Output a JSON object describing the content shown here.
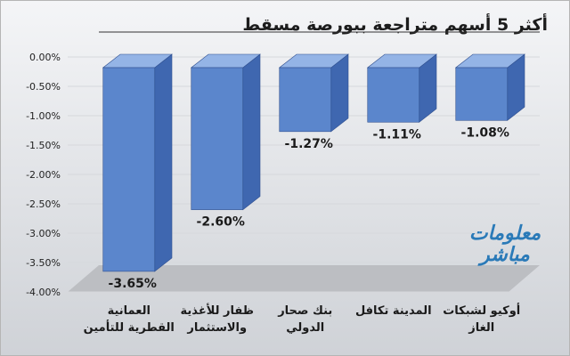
{
  "title": "أكثر 5 أسهم متراجعة ببورصة مسقط",
  "watermark": [
    "معلومات",
    "مباشر"
  ],
  "colors": {
    "bar_front": "#5b86cc",
    "bar_side": "#3f67b0",
    "bar_top": "#94b4e6",
    "floor": "#bcbec2",
    "grid": "#d6d8dc",
    "axis_line": "#333333"
  },
  "chart_data": {
    "type": "bar",
    "title": "أكثر 5 أسهم متراجعة ببورصة مسقط",
    "categories": [
      [
        "العمانية",
        "القطرية للتأمين"
      ],
      [
        "ظفار للأغذية",
        "والاستثمار"
      ],
      [
        "بنك صحار",
        "الدولي"
      ],
      [
        "المدينة تكافل"
      ],
      [
        "أوكيو لشبكات",
        "الغاز"
      ]
    ],
    "values": [
      -3.65,
      -2.6,
      -1.27,
      -1.11,
      -1.08
    ],
    "value_labels": [
      "-3.65%",
      "-2.60%",
      "-1.27%",
      "-1.11%",
      "-1.08%"
    ],
    "ylim": [
      -4.0,
      0.0
    ],
    "yticks": [
      "0.00%",
      "-0.50%",
      "-1.00%",
      "-1.50%",
      "-2.00%",
      "-2.50%",
      "-3.00%",
      "-3.50%",
      "-4.00%"
    ],
    "ytick_values": [
      0,
      -0.5,
      -1.0,
      -1.5,
      -2.0,
      -2.5,
      -3.0,
      -3.5,
      -4.0
    ],
    "grid": true,
    "three_d": true
  }
}
